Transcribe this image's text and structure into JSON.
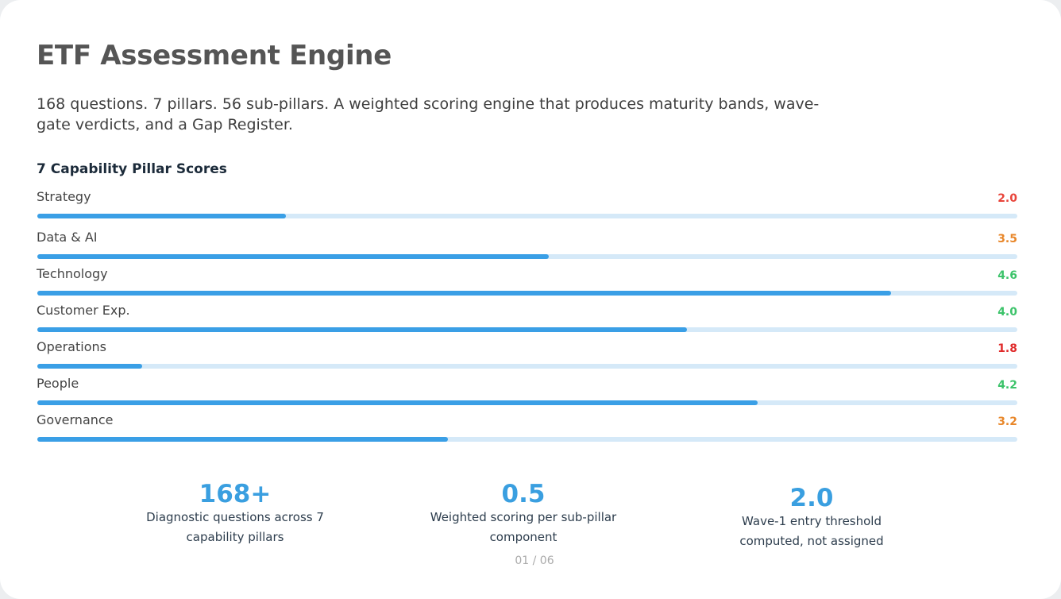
{
  "header": {
    "title": "ETF Assessment Engine",
    "subtitle": "168 questions. 7 pillars. 56 sub-pillars. A weighted scoring engine that produces maturity bands, wave-gate verdicts, and a Gap Register."
  },
  "pillars": {
    "title": "7 Capability Pillar Scores",
    "bar_range": [
      0,
      100
    ],
    "items": [
      {
        "name": "Strategy",
        "score": "2.0",
        "color": "#e8443a",
        "fill_percent": 25.4
      },
      {
        "name": "Data & AI",
        "score": "3.5",
        "color": "#e8872a",
        "fill_percent": 52.2
      },
      {
        "name": "Technology",
        "score": "4.6",
        "color": "#3cc36a",
        "fill_percent": 87.1
      },
      {
        "name": "Customer Exp.",
        "score": "4.0",
        "color": "#3cc36a",
        "fill_percent": 66.3
      },
      {
        "name": "Operations",
        "score": "1.8",
        "color": "#e02a2a",
        "fill_percent": 10.7
      },
      {
        "name": "People",
        "score": "4.2",
        "color": "#3cc36a",
        "fill_percent": 73.5
      },
      {
        "name": "Governance",
        "score": "3.2",
        "color": "#e8872a",
        "fill_percent": 41.9
      }
    ]
  },
  "stats": [
    {
      "value": "168+",
      "lines": [
        "Diagnostic questions across 7",
        "capability pillars"
      ]
    },
    {
      "value": "0.5",
      "lines": [
        "Weighted scoring per sub-pillar",
        "component"
      ]
    },
    {
      "value": "2.0",
      "lines": [
        "Wave-1 entry threshold",
        "computed, not assigned"
      ]
    }
  ],
  "footer": {
    "page": "01 / 06"
  }
}
